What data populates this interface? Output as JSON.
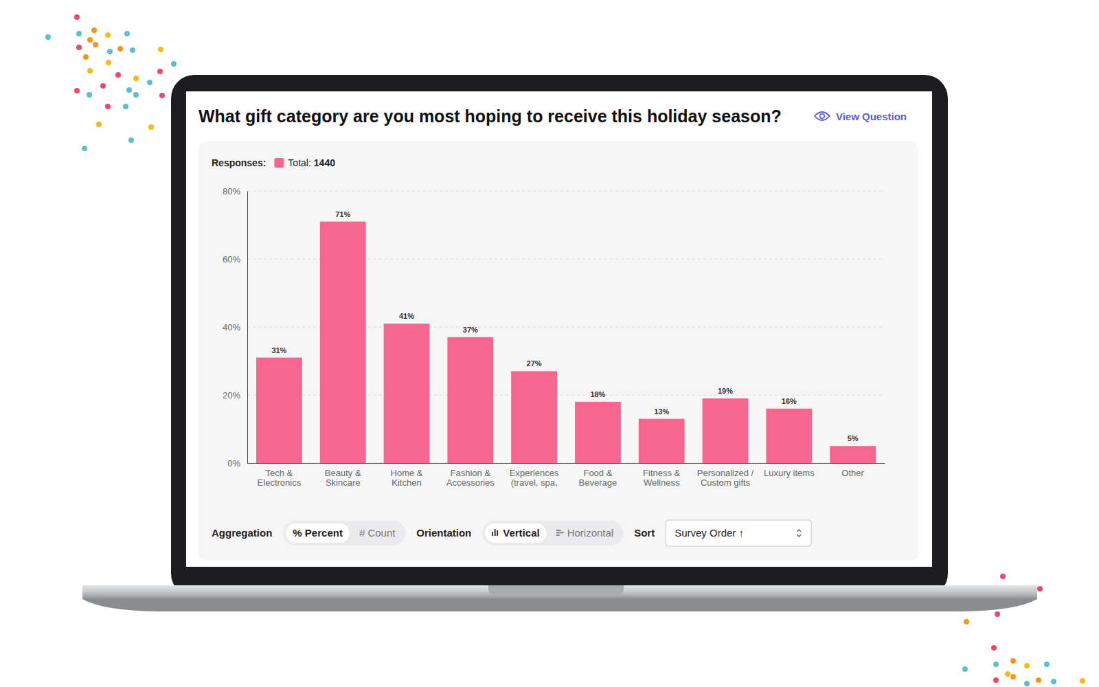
{
  "chart_data": {
    "type": "bar",
    "title": "What gift category are you most hoping to receive this holiday season?",
    "categories": [
      "Tech & Electronics",
      "Beauty & Skincare",
      "Home & Kitchen",
      "Fashion & Accessories",
      "Experiences (travel, spa,",
      "Food & Beverage",
      "Fitness & Wellness",
      "Personalized / Custom gifts",
      "Luxury items",
      "Other"
    ],
    "values": [
      31,
      71,
      41,
      37,
      27,
      18,
      13,
      19,
      16,
      5
    ],
    "value_labels": [
      "31%",
      "71%",
      "41%",
      "37%",
      "27%",
      "18%",
      "13%",
      "19%",
      "16%",
      "5%"
    ],
    "color": "#f7668f",
    "ylim": [
      0,
      80
    ],
    "yticks": [
      {
        "value": 0,
        "label": "0%"
      },
      {
        "value": 20,
        "label": "20%"
      },
      {
        "value": 40,
        "label": "40%"
      },
      {
        "value": 60,
        "label": "60%"
      },
      {
        "value": 80,
        "label": "80%"
      }
    ],
    "grid": true,
    "data_labels": true
  },
  "header": {
    "link": "View Question"
  },
  "responses": {
    "label": "Responses:",
    "name": "Total:",
    "total": 1440
  },
  "controls": {
    "aggregation": {
      "label": "Aggregation",
      "options": [
        "% Percent",
        "# Count"
      ]
    },
    "orientation": {
      "label": "Orientation",
      "options": [
        "Vertical",
        "Horizontal"
      ]
    },
    "sort": {
      "label": "Sort",
      "value": "Survey Order ↑"
    }
  }
}
